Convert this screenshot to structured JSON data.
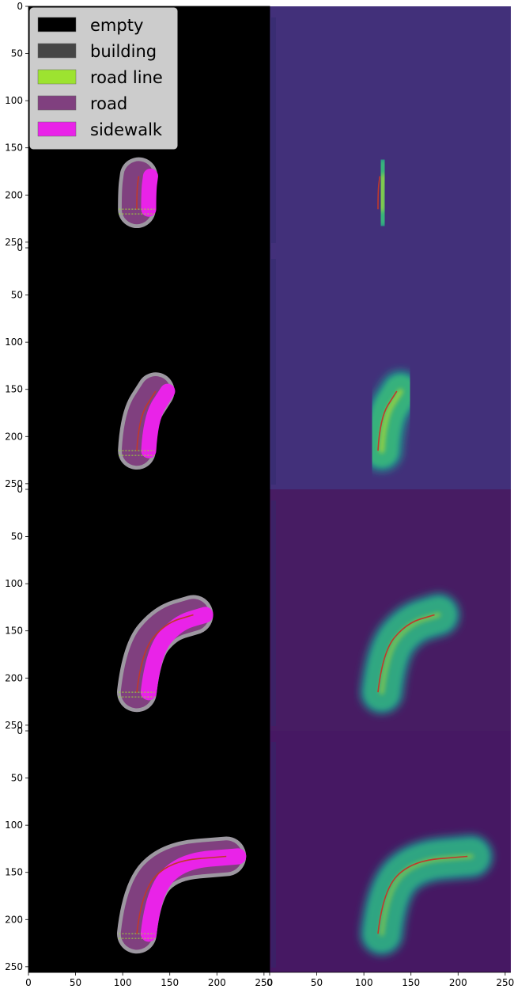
{
  "chart_data": {
    "type": "heatmap",
    "layout": "4 rows x 2 columns of image panels, shared axes",
    "xlim": [
      0,
      256
    ],
    "ylim": [
      256,
      0
    ],
    "x_ticks": [
      0,
      50,
      100,
      150,
      200,
      250
    ],
    "y_ticks": [
      0,
      50,
      100,
      150,
      200,
      250
    ],
    "x_tick_labels": [
      "0",
      "50",
      "100",
      "150",
      "200",
      "250"
    ],
    "y_tick_labels": [
      "0",
      "50",
      "100",
      "150",
      "200",
      "250"
    ],
    "left_colormap": "semantic segmentation (legend)",
    "right_colormap": "viridis",
    "legend": {
      "placement": "top-left",
      "entries": [
        {
          "label": "empty",
          "color": "#000000"
        },
        {
          "label": "building",
          "color": "#464646"
        },
        {
          "label": "road line",
          "color": "#9de330"
        },
        {
          "label": "road",
          "color": "#80407f"
        },
        {
          "label": "sidewalk",
          "color": "#e923e8"
        }
      ]
    },
    "panels": [
      {
        "row": 1,
        "right_background": "#42307a",
        "path": [
          [
            115,
            215
          ],
          [
            115,
            195
          ],
          [
            117,
            180
          ]
        ],
        "road_width": 32,
        "sidewalk_width": 16,
        "sidewalk_offset": 14,
        "heat_intensity": 0.9
      },
      {
        "row": 2,
        "right_background": "#42307a",
        "path": [
          [
            115,
            215
          ],
          [
            117,
            180
          ],
          [
            135,
            152
          ]
        ],
        "road_width": 32,
        "sidewalk_width": 16,
        "sidewalk_offset": 14,
        "heat_intensity": 0.85
      },
      {
        "row": 3,
        "right_background": "#471c63",
        "path": [
          [
            115,
            215
          ],
          [
            120,
            172
          ],
          [
            145,
            142
          ],
          [
            175,
            133
          ]
        ],
        "road_width": 34,
        "sidewalk_width": 17,
        "sidewalk_offset": 14,
        "heat_intensity": 0.6
      },
      {
        "row": 4,
        "right_background": "#461863",
        "path": [
          [
            115,
            215
          ],
          [
            120,
            170
          ],
          [
            150,
            138
          ],
          [
            210,
            133
          ]
        ],
        "road_width": 34,
        "sidewalk_width": 17,
        "sidewalk_offset": 14,
        "heat_intensity": 0.55
      }
    ]
  }
}
